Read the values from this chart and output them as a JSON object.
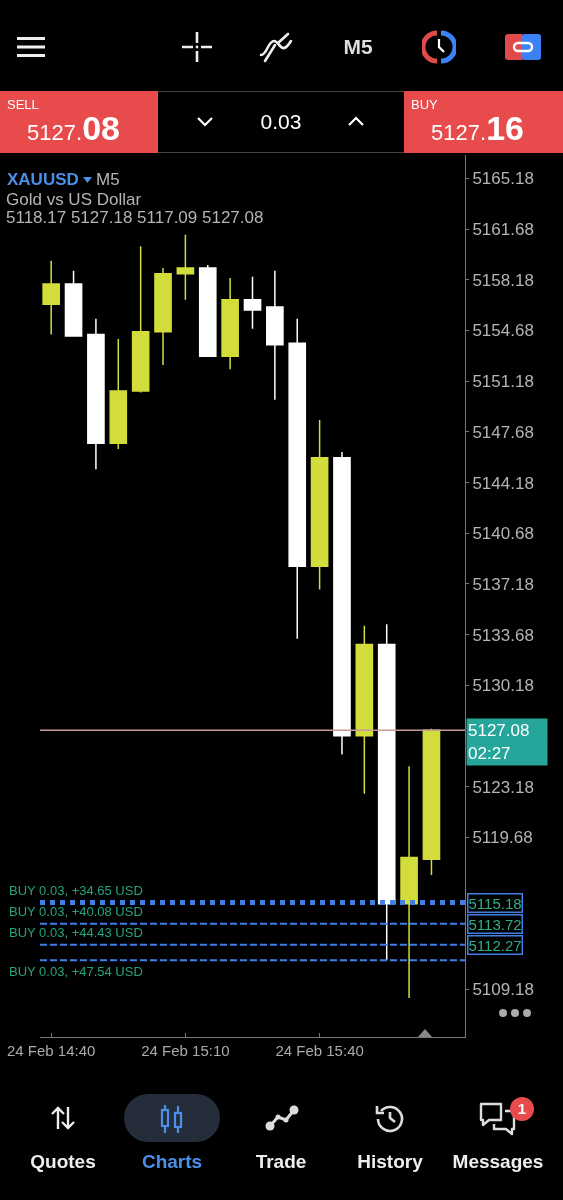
{
  "chart_data": {
    "type": "candlestick",
    "title": "XAUUSD",
    "subtitle": "Gold vs US Dollar",
    "categories": [
      "24 Feb 14:40",
      null,
      null,
      null,
      null,
      null,
      "24 Feb 15:10",
      null,
      null,
      null,
      null,
      null,
      "24 Feb 15:40",
      null,
      null,
      null,
      null,
      null
    ],
    "ohlc": [
      [
        5156.5,
        5159.5,
        5154.4,
        5157.9
      ],
      [
        5157.9,
        5158.8,
        5154.3,
        5154.3
      ],
      [
        5154.4,
        5155.5,
        5145.1,
        5146.9
      ],
      [
        5146.9,
        5154.1,
        5146.5,
        5150.5
      ],
      [
        5150.5,
        5160.5,
        5150.4,
        5154.6
      ],
      [
        5154.6,
        5159.0,
        5152.3,
        5158.6
      ],
      [
        5158.6,
        5161.3,
        5156.8,
        5159.0
      ],
      [
        5159.0,
        5159.2,
        5152.9,
        5152.9
      ],
      [
        5152.9,
        5158.3,
        5152.0,
        5156.8
      ],
      [
        5156.8,
        5158.4,
        5154.8,
        5156.1
      ],
      [
        5156.3,
        5158.8,
        5149.9,
        5153.7
      ],
      [
        5153.8,
        5155.5,
        5133.4,
        5138.4
      ],
      [
        5138.4,
        5148.5,
        5136.8,
        5145.9
      ],
      [
        5145.9,
        5146.3,
        5125.4,
        5126.7
      ],
      [
        5126.7,
        5134.3,
        5122.7,
        5133.0
      ],
      [
        5133.0,
        5134.4,
        5111.2,
        5115.1
      ],
      [
        5115.1,
        5124.6,
        5108.6,
        5118.3
      ],
      [
        5118.17,
        5127.18,
        5117.09,
        5127.08
      ]
    ],
    "colors": [
      "#d2dc3a",
      "#ffffff",
      "#ffffff",
      "#d2dc3a",
      "#d2dc3a",
      "#d2dc3a",
      "#d2dc3a",
      "#ffffff",
      "#d2dc3a",
      "#ffffff",
      "#ffffff",
      "#ffffff",
      "#d2dc3a",
      "#ffffff",
      "#d2dc3a",
      "#ffffff",
      "#d2dc3a",
      "#d2dc3a"
    ],
    "ylim": [
      5105.9,
      5166.8
    ],
    "yticks": [
      5165.18,
      5161.68,
      5158.18,
      5154.68,
      5151.18,
      5147.68,
      5144.18,
      5140.68,
      5137.18,
      5133.68,
      5130.18,
      5123.18,
      5119.68,
      5109.18
    ],
    "ref_lines": [
      {
        "axis": "y",
        "value": 5127.08,
        "label": "5127.08",
        "color": "#c49a9a",
        "line_style": "solid"
      },
      {
        "axis": "y",
        "value": 5115.18,
        "label": "5115.18",
        "color": "#3f7fe6",
        "line_style": "dotted"
      },
      {
        "axis": "y",
        "value": 5113.72,
        "label": "5113.72",
        "color": "#3f7fe6",
        "line_style": "dashed"
      },
      {
        "axis": "y",
        "value": 5112.27,
        "label": "5112.27",
        "color": "#3f7fe6",
        "line_style": "dashed"
      },
      {
        "axis": "y",
        "value": 5111.2,
        "color": "#3f7fe6",
        "line_style": "dashed"
      }
    ],
    "annotations": [
      "M5",
      "SELL",
      "5127.08",
      "0.03",
      "BUY",
      "5127.16",
      "M5",
      "5118.17 5127.18 5117.09 5127.08",
      "Quotes",
      "Charts",
      "Trade",
      "History",
      "Messages",
      "1",
      "02:27",
      {
        "text": "BUY 0.03, +34.65 USD",
        "y": 5115.18
      },
      {
        "text": "BUY 0.03, +40.08 USD",
        "y": 5113.72
      },
      {
        "text": "BUY 0.03, +44.43 USD",
        "y": 5112.27
      },
      {
        "text": "BUY 0.03, +47.54 USD",
        "y": 5111.2
      }
    ]
  }
}
